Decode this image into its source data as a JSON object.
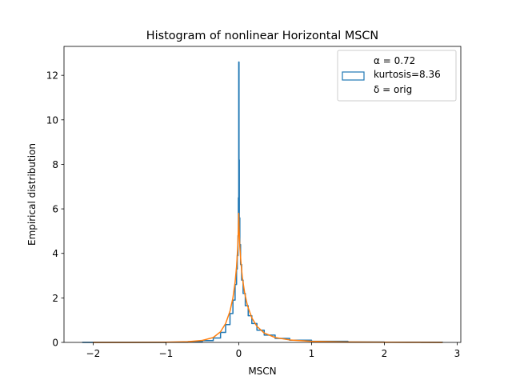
{
  "chart_data": {
    "type": "line",
    "title": "Histogram of nonlinear Horizontal MSCN",
    "xlabel": "MSCN",
    "ylabel": "Empirical distribution",
    "xlim": [
      -2.4,
      3.05
    ],
    "ylim": [
      0,
      13.3
    ],
    "xticks": [
      -2,
      -1,
      0,
      1,
      2,
      3
    ],
    "xtick_labels": [
      "−2",
      "−1",
      "0",
      "1",
      "2",
      "3"
    ],
    "yticks": [
      0,
      2,
      4,
      6,
      8,
      10,
      12
    ],
    "ytick_labels": [
      "0",
      "2",
      "4",
      "6",
      "8",
      "10",
      "12"
    ],
    "grid": false,
    "legend_position": "top-right",
    "legend_lines": [
      "α = 0.72",
      "kurtosis=8.36",
      "δ = orig"
    ],
    "series": [
      {
        "style": "step",
        "color": "#1f77b4",
        "x": [
          -2.15,
          -1.5,
          -1.0,
          -0.7,
          -0.5,
          -0.35,
          -0.25,
          -0.18,
          -0.12,
          -0.08,
          -0.05,
          -0.03,
          -0.02,
          -0.01,
          -0.005,
          0.0,
          0.004,
          0.008,
          0.015,
          0.025,
          0.04,
          0.06,
          0.09,
          0.13,
          0.18,
          0.25,
          0.35,
          0.5,
          0.7,
          1.0,
          1.5,
          2.0,
          2.5,
          2.8
        ],
        "y": [
          0,
          0.002,
          0.01,
          0.03,
          0.08,
          0.2,
          0.45,
          0.8,
          1.3,
          1.9,
          2.6,
          3.3,
          3.9,
          4.8,
          6.5,
          12.6,
          8.2,
          5.6,
          4.4,
          3.5,
          2.8,
          2.2,
          1.65,
          1.2,
          0.85,
          0.55,
          0.33,
          0.18,
          0.1,
          0.05,
          0.02,
          0.008,
          0.003,
          0
        ]
      },
      {
        "style": "line",
        "color": "#ff7f0e",
        "x": [
          -2.0,
          -1.5,
          -1.0,
          -0.7,
          -0.5,
          -0.35,
          -0.25,
          -0.18,
          -0.12,
          -0.08,
          -0.05,
          -0.03,
          -0.015,
          -0.005,
          0.0,
          0.005,
          0.015,
          0.03,
          0.05,
          0.08,
          0.12,
          0.18,
          0.25,
          0.35,
          0.5,
          0.7,
          1.0,
          1.5,
          2.0,
          2.5,
          2.8
        ],
        "y": [
          0,
          0.002,
          0.01,
          0.03,
          0.09,
          0.22,
          0.48,
          0.85,
          1.4,
          2.0,
          2.7,
          3.4,
          4.2,
          5.1,
          5.8,
          5.1,
          4.3,
          3.6,
          2.9,
          2.25,
          1.65,
          1.1,
          0.72,
          0.42,
          0.22,
          0.11,
          0.05,
          0.02,
          0.008,
          0.003,
          0
        ]
      }
    ]
  }
}
